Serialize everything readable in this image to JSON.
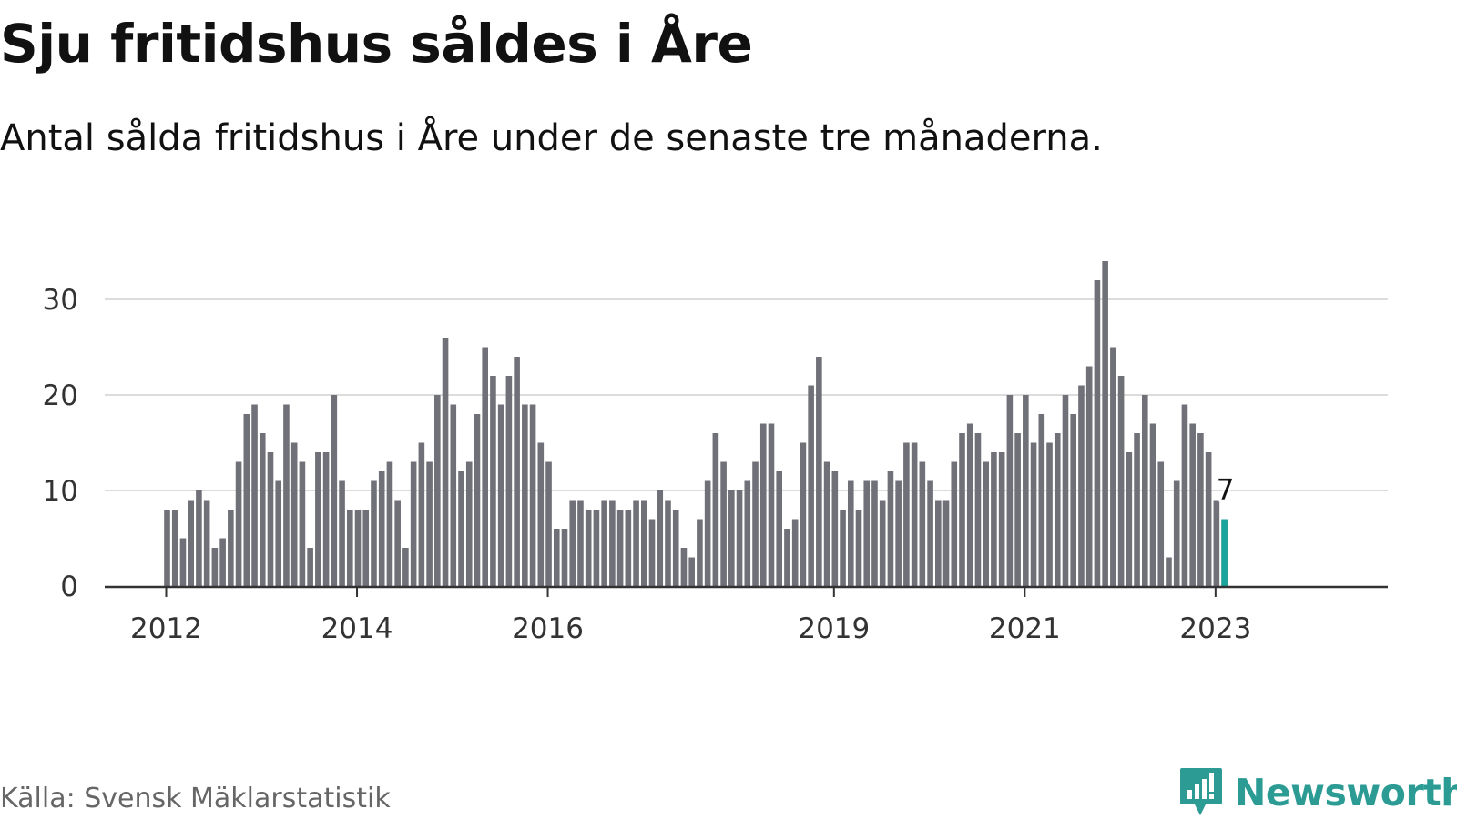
{
  "header": {
    "title": "Sju fritidshus såldes i Åre",
    "subtitle": "Antal sålda fritidshus i Åre under de senaste tre månaderna."
  },
  "footer": {
    "source": "Källa: Svensk Mäklarstatistik",
    "brand": "Newsworthy"
  },
  "colors": {
    "bar": "#707078",
    "highlight": "#1aa59c",
    "grid": "#dcdcdc",
    "axis": "#333333",
    "brand": "#2b9b94"
  },
  "chart_data": {
    "type": "bar",
    "title": "",
    "xlabel": "",
    "ylabel": "",
    "ylim": [
      0,
      34
    ],
    "yticks": [
      0,
      10,
      20,
      30
    ],
    "grid": true,
    "xtick_labels": [
      {
        "label": "2012",
        "index": 0
      },
      {
        "label": "2014",
        "index": 24
      },
      {
        "label": "2016",
        "index": 48
      },
      {
        "label": "2019",
        "index": 84
      },
      {
        "label": "2021",
        "index": 108
      },
      {
        "label": "2023",
        "index": 132
      }
    ],
    "values": [
      8,
      8,
      5,
      9,
      10,
      9,
      4,
      5,
      8,
      13,
      18,
      19,
      16,
      14,
      11,
      19,
      15,
      13,
      4,
      14,
      14,
      20,
      11,
      8,
      8,
      8,
      11,
      12,
      13,
      9,
      4,
      13,
      15,
      13,
      20,
      26,
      19,
      12,
      13,
      18,
      25,
      22,
      19,
      22,
      24,
      19,
      19,
      15,
      13,
      6,
      6,
      9,
      9,
      8,
      8,
      9,
      9,
      8,
      8,
      9,
      9,
      7,
      10,
      9,
      8,
      4,
      3,
      7,
      11,
      16,
      13,
      10,
      10,
      11,
      13,
      17,
      17,
      12,
      6,
      7,
      15,
      21,
      24,
      13,
      12,
      8,
      11,
      8,
      11,
      11,
      9,
      12,
      11,
      15,
      15,
      13,
      11,
      9,
      9,
      13,
      16,
      17,
      16,
      13,
      14,
      14,
      20,
      16,
      20,
      15,
      18,
      15,
      16,
      20,
      18,
      21,
      23,
      32,
      34,
      25,
      22,
      14,
      16,
      20,
      17,
      13,
      3,
      11,
      19,
      17,
      16,
      14,
      9,
      7
    ],
    "highlight_index": 133,
    "highlight_label": "7"
  }
}
